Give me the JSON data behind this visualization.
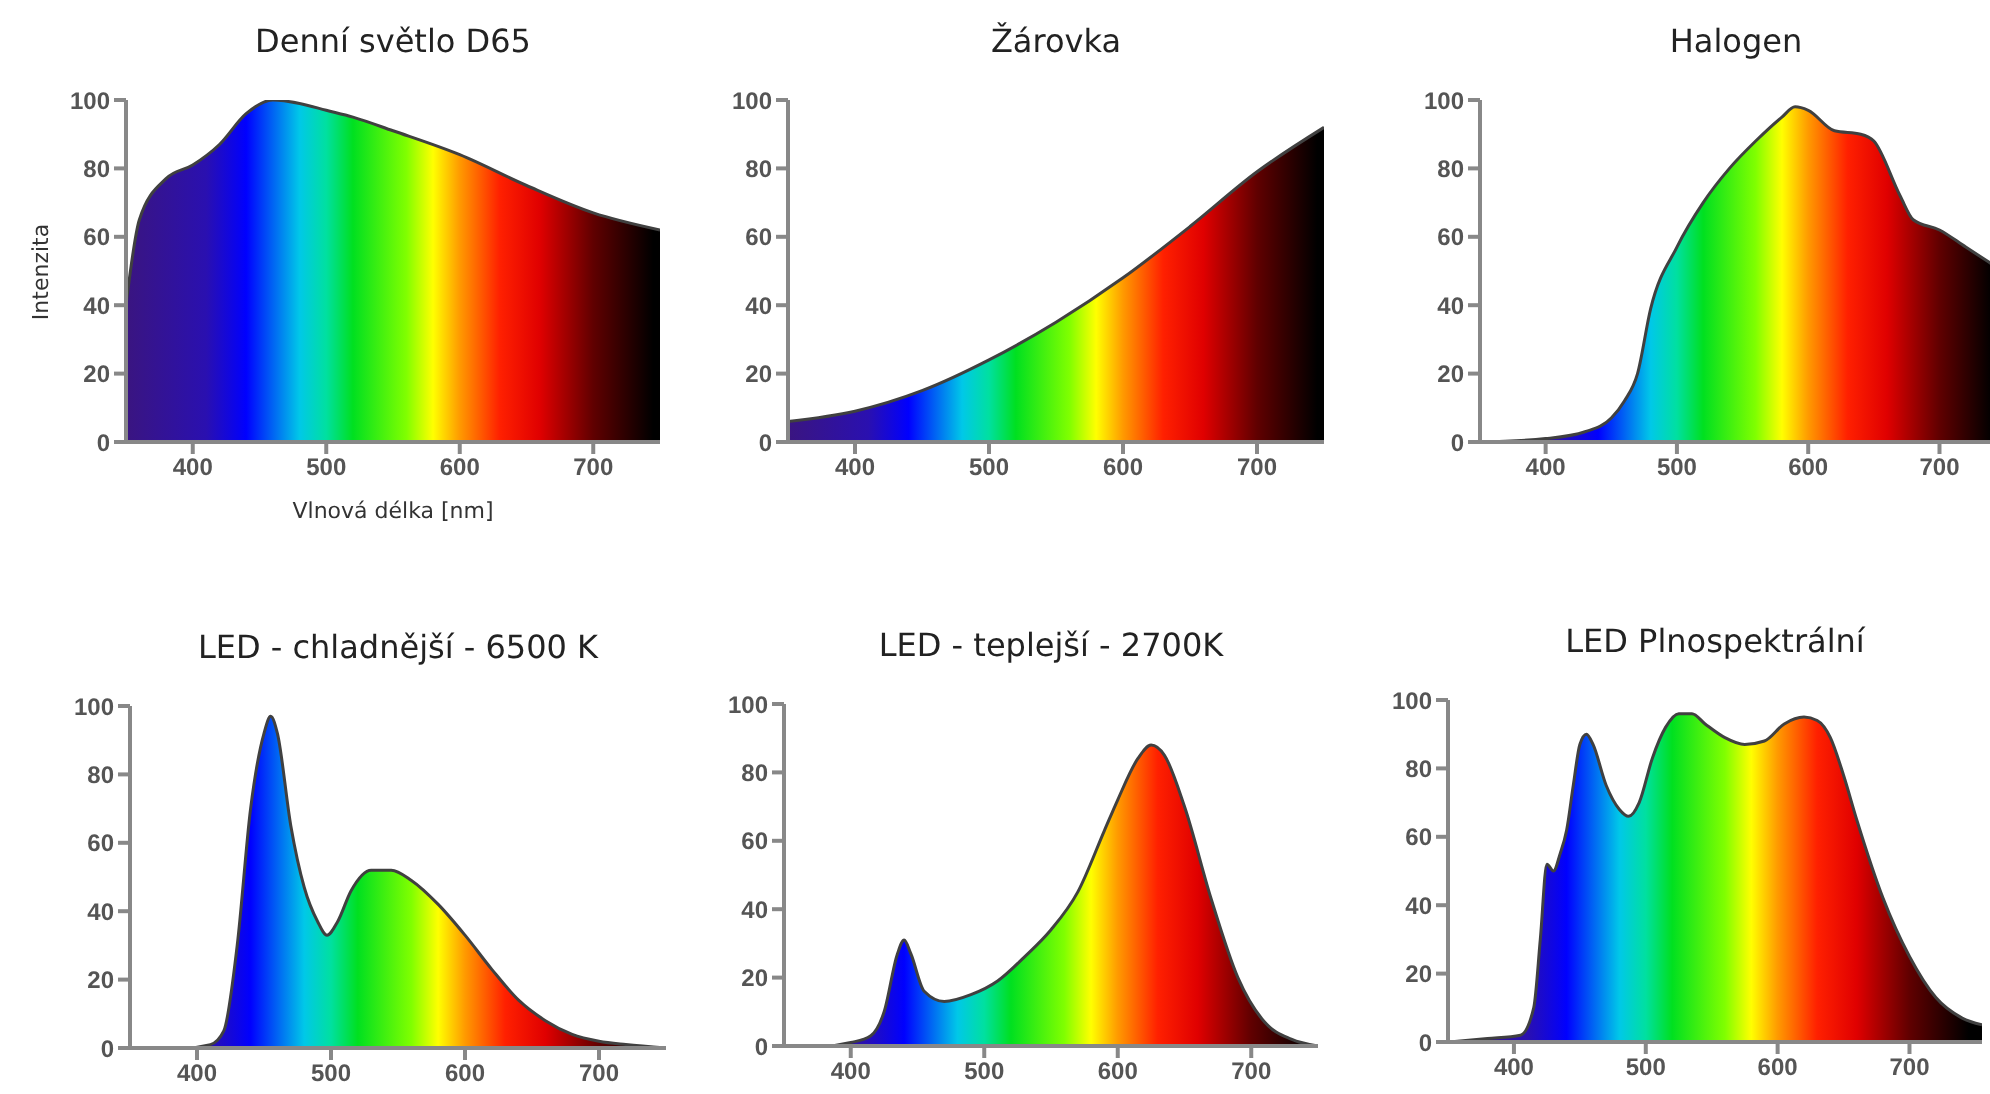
{
  "chart_data": [
    {
      "type": "area",
      "title": "Denní světlo D65",
      "xlabel": "Vlnová délka [nm]",
      "ylabel": "Intenzita",
      "xlim": [
        350,
        750
      ],
      "xticks": [
        400,
        500,
        600,
        700
      ],
      "ylim": [
        0,
        100
      ],
      "yticks": [
        0,
        20,
        40,
        60,
        80,
        100
      ],
      "grid": false,
      "legend": false,
      "series": [
        {
          "color": "#404040",
          "x": [
            350,
            360,
            380,
            400,
            420,
            440,
            460,
            480,
            500,
            520,
            550,
            600,
            650,
            700,
            750
          ],
          "values": [
            40,
            65,
            77,
            81,
            87,
            96,
            100,
            99,
            97,
            95,
            91,
            84,
            75,
            67,
            62
          ]
        }
      ]
    },
    {
      "type": "area",
      "title": "Žárovka",
      "xlim": [
        350,
        750
      ],
      "xticks": [
        400,
        500,
        600,
        700
      ],
      "ylim": [
        0,
        100
      ],
      "yticks": [
        0,
        20,
        40,
        60,
        80,
        100
      ],
      "grid": false,
      "legend": false,
      "series": [
        {
          "color": "#404040",
          "x": [
            350,
            400,
            450,
            500,
            550,
            600,
            650,
            700,
            750
          ],
          "values": [
            6,
            9,
            15,
            24,
            35,
            48,
            63,
            79,
            92
          ]
        }
      ]
    },
    {
      "type": "area",
      "title": "Halogen",
      "xlim": [
        350,
        740
      ],
      "xticks": [
        400,
        500,
        600,
        700
      ],
      "ylim": [
        0,
        100
      ],
      "yticks": [
        0,
        20,
        40,
        60,
        80,
        100
      ],
      "grid": false,
      "legend": false,
      "series": [
        {
          "color": "#404040",
          "x": [
            350,
            400,
            430,
            450,
            460,
            470,
            480,
            500,
            520,
            540,
            560,
            580,
            590,
            600,
            620,
            640,
            650,
            670,
            680,
            700,
            720,
            740
          ],
          "values": [
            0,
            1,
            3,
            7,
            12,
            20,
            39,
            57,
            70,
            80,
            88,
            95,
            98,
            97,
            91,
            90,
            88,
            72,
            65,
            62,
            57,
            52
          ]
        }
      ]
    },
    {
      "type": "area",
      "title": "LED - chladnější - 6500 K",
      "xlim": [
        350,
        750
      ],
      "xticks": [
        400,
        500,
        600,
        700
      ],
      "ylim": [
        0,
        100
      ],
      "yticks": [
        0,
        20,
        40,
        60,
        80,
        100
      ],
      "grid": false,
      "legend": false,
      "series": [
        {
          "color": "#404040",
          "x": [
            350,
            390,
            410,
            420,
            430,
            440,
            450,
            455,
            460,
            470,
            480,
            490,
            497,
            505,
            515,
            530,
            545,
            560,
            580,
            600,
            620,
            640,
            660,
            680,
            700,
            720,
            750
          ],
          "values": [
            0,
            0,
            1,
            5,
            30,
            70,
            92,
            97,
            92,
            65,
            47,
            37,
            33,
            37,
            46,
            52,
            52,
            49,
            42,
            33,
            23,
            14,
            8,
            4,
            2,
            1,
            0
          ]
        }
      ]
    },
    {
      "type": "area",
      "title": "LED - teplejší - 2700K",
      "xlim": [
        350,
        750
      ],
      "xticks": [
        400,
        500,
        600,
        700
      ],
      "ylim": [
        0,
        100
      ],
      "yticks": [
        0,
        20,
        40,
        60,
        80,
        100
      ],
      "grid": false,
      "legend": false,
      "series": [
        {
          "color": "#404040",
          "x": [
            350,
            380,
            400,
            415,
            425,
            435,
            440,
            445,
            455,
            470,
            490,
            510,
            530,
            550,
            570,
            590,
            600,
            615,
            625,
            635,
            650,
            670,
            690,
            710,
            730,
            750
          ],
          "values": [
            0,
            0,
            1,
            3,
            10,
            27,
            31,
            27,
            16,
            13,
            15,
            19,
            26,
            34,
            45,
            63,
            72,
            84,
            88,
            85,
            70,
            43,
            20,
            7,
            2,
            0
          ]
        }
      ]
    },
    {
      "type": "area",
      "title": "LED Plnospektrální",
      "xlim": [
        350,
        755
      ],
      "xticks": [
        400,
        500,
        600,
        700
      ],
      "ylim": [
        0,
        100
      ],
      "yticks": [
        0,
        20,
        40,
        60,
        80,
        100
      ],
      "grid": false,
      "legend": false,
      "series": [
        {
          "color": "#404040",
          "x": [
            350,
            380,
            405,
            415,
            420,
            425,
            430,
            435,
            440,
            445,
            450,
            455,
            460,
            470,
            480,
            487,
            495,
            505,
            515,
            525,
            535,
            545,
            560,
            575,
            590,
            605,
            620,
            630,
            640,
            650,
            660,
            680,
            700,
            720,
            740,
            755
          ],
          "values": [
            0,
            1,
            2,
            10,
            30,
            52,
            50,
            55,
            62,
            75,
            87,
            90,
            87,
            75,
            68,
            66,
            70,
            83,
            92,
            96,
            96,
            93,
            89,
            87,
            88,
            93,
            95,
            94,
            89,
            78,
            65,
            42,
            25,
            13,
            7,
            5
          ]
        }
      ]
    }
  ]
}
